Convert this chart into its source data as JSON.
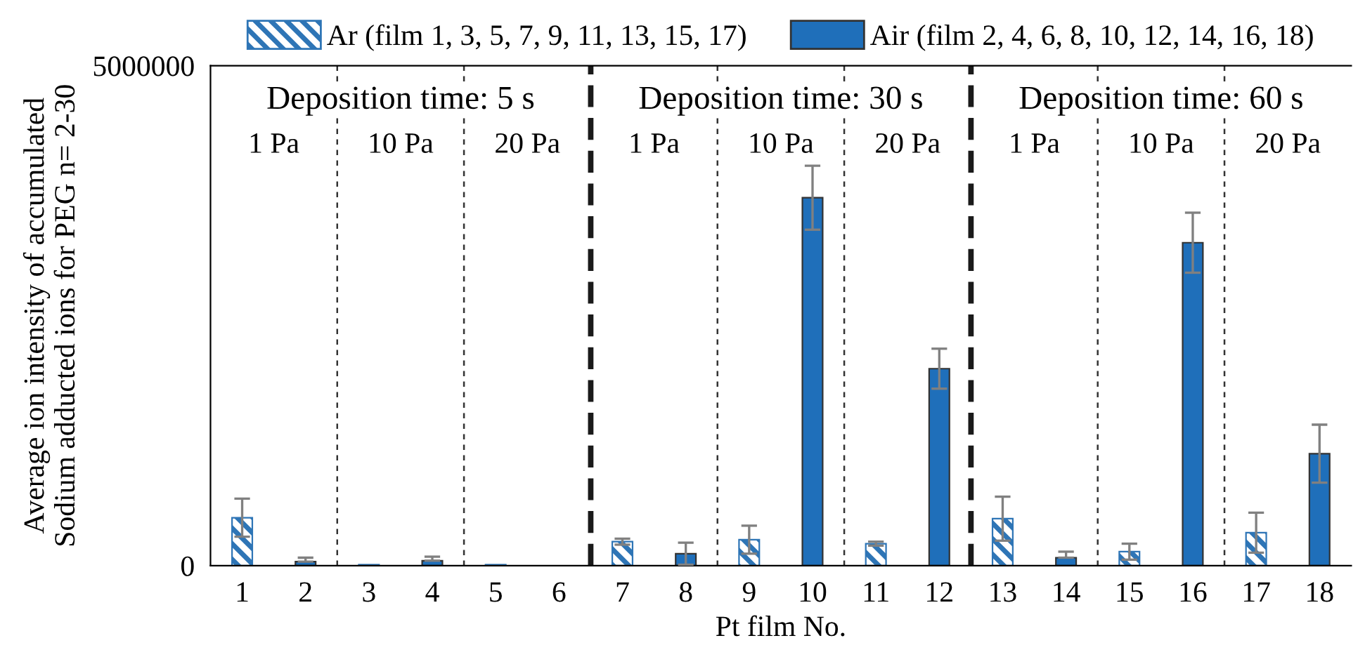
{
  "chart_data": {
    "type": "bar",
    "xlabel": "Pt film No.",
    "ylabel": "Average ion intensity of accumulated\nSodium adducted ions for PEG n= 2-30",
    "x": [
      1,
      2,
      3,
      4,
      5,
      6,
      7,
      8,
      9,
      10,
      11,
      12,
      13,
      14,
      15,
      16,
      17,
      18
    ],
    "xlim": [
      0.5,
      18.5
    ],
    "xticks": [
      1,
      2,
      3,
      4,
      5,
      6,
      7,
      8,
      9,
      10,
      11,
      12,
      13,
      14,
      15,
      16,
      17,
      18
    ],
    "ylim": [
      0,
      5000000
    ],
    "yticks": [
      0,
      5000000
    ],
    "series": [
      {
        "name": "Ar (film 1, 3, 5, 7, 9, 11, 13, 15, 17)",
        "color": "#2e75b6",
        "values": [
          480000,
          null,
          10000,
          null,
          10000,
          null,
          240000,
          null,
          260000,
          null,
          220000,
          null,
          470000,
          null,
          140000,
          null,
          330000,
          null
        ],
        "errors": [
          190000,
          null,
          null,
          null,
          null,
          null,
          30000,
          null,
          140000,
          null,
          20000,
          null,
          220000,
          null,
          80000,
          null,
          200000,
          null
        ]
      },
      {
        "name": "Air (film 2, 4, 6, 8, 10, 12, 14, 16, 18)",
        "color": "#1f6fba",
        "values": [
          null,
          40000,
          null,
          50000,
          null,
          null,
          null,
          120000,
          null,
          3680000,
          null,
          1970000,
          null,
          80000,
          null,
          3230000,
          null,
          1120000
        ],
        "errors": [
          null,
          [
            40000,
            80000
          ],
          null,
          [
            50000,
            90000
          ],
          null,
          null,
          null,
          110000,
          null,
          320000,
          null,
          200000,
          null,
          [
            80000,
            140000
          ],
          null,
          300000,
          null,
          290000
        ]
      }
    ],
    "ref_lines": [
      {
        "axis": "x",
        "value": 2.5,
        "color": "#333333",
        "line_style": "dotted"
      },
      {
        "axis": "x",
        "value": 4.5,
        "color": "#333333",
        "line_style": "dotted"
      },
      {
        "axis": "x",
        "value": 6.5,
        "color": "#1a1a1a",
        "line_style": "dashed"
      },
      {
        "axis": "x",
        "value": 8.5,
        "color": "#333333",
        "line_style": "dotted"
      },
      {
        "axis": "x",
        "value": 10.5,
        "color": "#333333",
        "line_style": "dotted"
      },
      {
        "axis": "x",
        "value": 12.5,
        "color": "#1a1a1a",
        "line_style": "dashed"
      },
      {
        "axis": "x",
        "value": 14.5,
        "color": "#333333",
        "line_style": "dotted"
      },
      {
        "axis": "x",
        "value": 16.5,
        "color": "#333333",
        "line_style": "dotted"
      }
    ],
    "annotations": [
      "Deposition time: 5 s",
      "Deposition time: 30 s",
      "Deposition time: 60 s",
      "1 Pa",
      "10 Pa",
      "20 Pa",
      "1 Pa",
      "10 Pa",
      "20 Pa",
      "1 Pa",
      "10 Pa",
      "20 Pa"
    ],
    "legend": "top",
    "grid": false
  }
}
